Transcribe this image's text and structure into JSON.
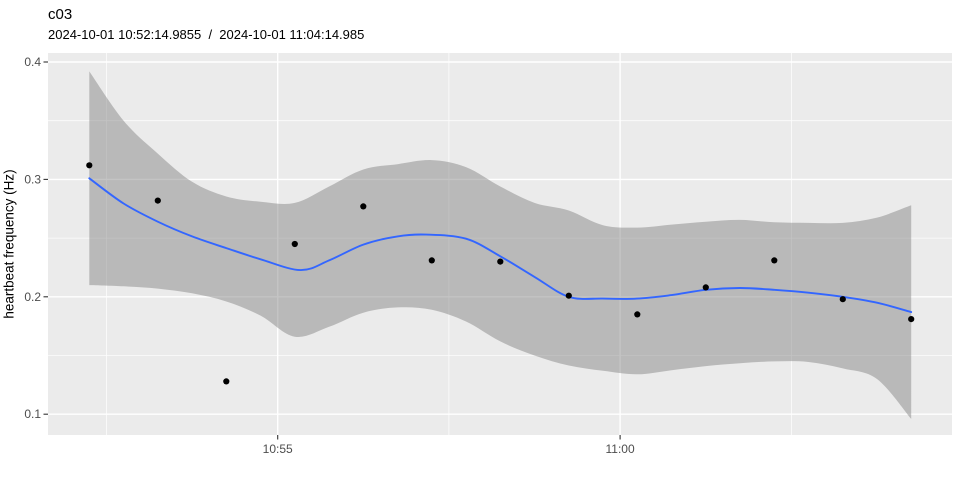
{
  "chart_data": {
    "type": "scatter",
    "title": "c03",
    "subtitle": "2024-10-01 10:52:14.9855  /  2024-10-01 11:04:14.985",
    "ylabel": "heartbeat frequency (Hz)",
    "xlabel": "",
    "legend": "none",
    "grid": "major and minor, white on grey panel",
    "x_axis": {
      "unit": "seconds after 2024-10-01 10:52:15",
      "range_s": [
        -36.2,
        755.7
      ],
      "major_ticks": [
        {
          "s": 165,
          "label": "10:55"
        },
        {
          "s": 465,
          "label": "11:00"
        }
      ],
      "minor_ticks_s": [
        15,
        315,
        615
      ]
    },
    "y_axis": {
      "range": [
        0.0823,
        0.4077
      ],
      "major_ticks": [
        {
          "v": 0.1,
          "label": "0.1"
        },
        {
          "v": 0.2,
          "label": "0.2"
        },
        {
          "v": 0.3,
          "label": "0.3"
        },
        {
          "v": 0.4,
          "label": "0.4"
        }
      ],
      "minor_ticks": [
        0.15,
        0.25,
        0.35
      ]
    },
    "points": {
      "seconds": [
        0,
        60,
        120,
        180,
        240,
        300,
        360,
        420,
        480,
        540,
        600,
        660,
        720
      ],
      "hz": [
        0.312,
        0.282,
        0.128,
        0.245,
        0.277,
        0.231,
        0.23,
        0.201,
        0.185,
        0.208,
        0.231,
        0.198,
        0.181
      ]
    },
    "smooth_line": {
      "seconds": [
        0,
        30,
        60,
        90,
        120,
        150,
        185,
        210,
        240,
        270,
        295,
        330,
        360,
        390,
        420,
        450,
        480,
        510,
        540,
        570,
        600,
        630,
        660,
        690,
        720
      ],
      "hz": [
        0.301,
        0.2795,
        0.264,
        0.2515,
        0.2415,
        0.232,
        0.2228,
        0.231,
        0.2445,
        0.2515,
        0.253,
        0.2495,
        0.2345,
        0.217,
        0.2,
        0.1985,
        0.1985,
        0.2015,
        0.206,
        0.2075,
        0.206,
        0.2035,
        0.2,
        0.195,
        0.187
      ]
    },
    "ribbon": {
      "seconds": [
        0,
        30,
        60,
        90,
        120,
        150,
        180,
        210,
        240,
        270,
        300,
        330,
        360,
        390,
        420,
        450,
        480,
        510,
        540,
        570,
        600,
        630,
        660,
        690,
        720
      ],
      "upper_hz": [
        0.392,
        0.35,
        0.322,
        0.298,
        0.2855,
        0.281,
        0.28,
        0.294,
        0.3085,
        0.313,
        0.3165,
        0.3105,
        0.294,
        0.28,
        0.2735,
        0.261,
        0.259,
        0.2615,
        0.264,
        0.2655,
        0.2635,
        0.263,
        0.263,
        0.2675,
        0.278
      ],
      "lower_hz": [
        0.21,
        0.209,
        0.207,
        0.203,
        0.196,
        0.184,
        0.166,
        0.1745,
        0.1865,
        0.191,
        0.189,
        0.179,
        0.162,
        0.15,
        0.1415,
        0.137,
        0.134,
        0.1375,
        0.141,
        0.1435,
        0.145,
        0.1445,
        0.139,
        0.13,
        0.096
      ]
    },
    "colors": {
      "panel_bg": "#EBEBEB",
      "grid": "#FFFFFF",
      "ribbon": "rgba(125,125,125,0.45)",
      "line": "#3366FF",
      "point": "#000000",
      "tick_mark": "#333333",
      "tick_label": "#4D4D4D",
      "title": "#000000"
    }
  }
}
